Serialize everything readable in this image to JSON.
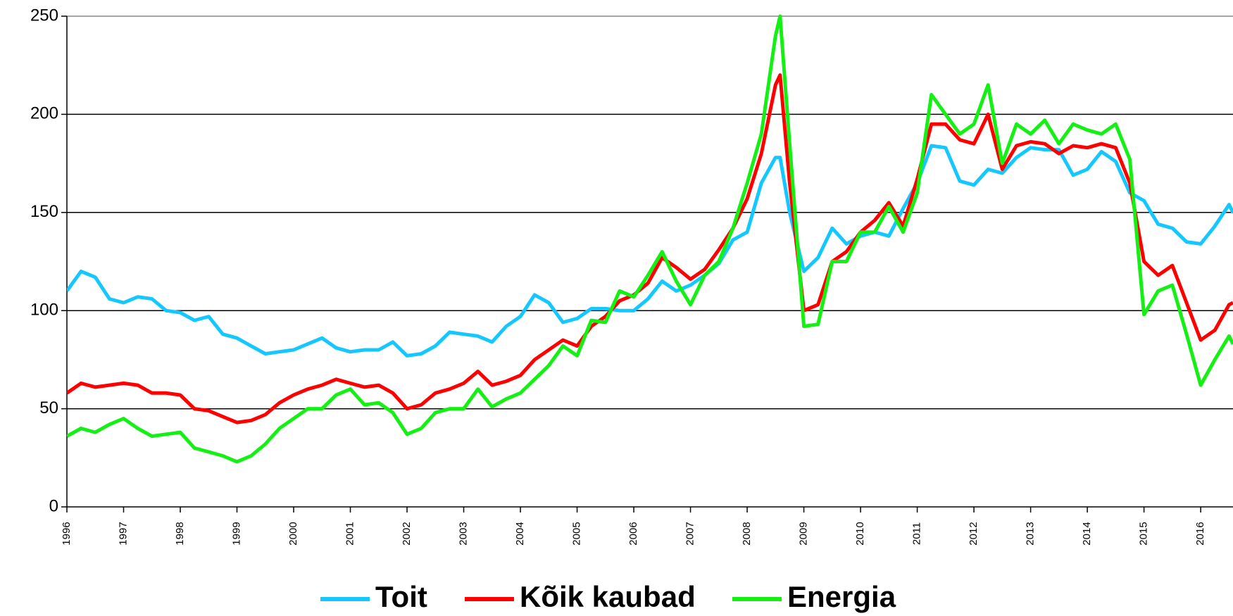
{
  "chart_data": {
    "type": "line",
    "x": [
      1996,
      1996.25,
      1996.5,
      1996.75,
      1997,
      1997.25,
      1997.5,
      1997.75,
      1998,
      1998.25,
      1998.5,
      1998.75,
      1999,
      1999.25,
      1999.5,
      1999.75,
      2000,
      2000.25,
      2000.5,
      2000.75,
      2001,
      2001.25,
      2001.5,
      2001.75,
      2002,
      2002.25,
      2002.5,
      2002.75,
      2003,
      2003.25,
      2003.5,
      2003.75,
      2004,
      2004.25,
      2004.5,
      2004.75,
      2005,
      2005.25,
      2005.5,
      2005.75,
      2006,
      2006.25,
      2006.5,
      2006.75,
      2007,
      2007.25,
      2007.5,
      2007.75,
      2008,
      2008.25,
      2008.5,
      2008.58,
      2008.75,
      2009,
      2009.25,
      2009.5,
      2009.75,
      2010,
      2010.25,
      2010.5,
      2010.75,
      2011,
      2011.25,
      2011.5,
      2011.75,
      2012,
      2012.25,
      2012.5,
      2012.75,
      2013,
      2013.25,
      2013.5,
      2013.75,
      2014,
      2014.25,
      2014.5,
      2014.75,
      2015,
      2015.25,
      2015.5,
      2015.75,
      2016,
      2016.25,
      2016.5,
      2016.57
    ],
    "series": [
      {
        "name": "Toit",
        "color": "#14c8ff",
        "values": [
          110,
          120,
          117,
          106,
          104,
          107,
          106,
          100,
          99,
          95,
          97,
          88,
          86,
          82,
          78,
          79,
          80,
          83,
          86,
          81,
          79,
          80,
          80,
          84,
          77,
          78,
          82,
          89,
          88,
          87,
          84,
          92,
          97,
          108,
          104,
          94,
          96,
          101,
          101,
          100,
          100,
          106,
          115,
          110,
          113,
          118,
          124,
          136,
          140,
          165,
          178,
          178,
          150,
          120,
          127,
          142,
          134,
          138,
          140,
          138,
          152,
          165,
          184,
          183,
          166,
          164,
          172,
          170,
          178,
          183,
          182,
          182,
          169,
          172,
          181,
          176,
          160,
          156,
          144,
          142,
          135,
          134,
          143,
          154,
          150
        ]
      },
      {
        "name": "Kõik kaubad",
        "color": "#ff0000",
        "values": [
          58,
          63,
          61,
          62,
          63,
          62,
          58,
          58,
          57,
          50,
          49,
          46,
          43,
          44,
          47,
          53,
          57,
          60,
          62,
          65,
          63,
          61,
          62,
          58,
          50,
          52,
          58,
          60,
          63,
          69,
          62,
          64,
          67,
          75,
          80,
          85,
          82,
          92,
          97,
          105,
          108,
          114,
          127,
          122,
          116,
          121,
          131,
          142,
          157,
          180,
          215,
          220,
          165,
          100,
          103,
          125,
          130,
          140,
          146,
          155,
          143,
          167,
          195,
          195,
          187,
          185,
          200,
          172,
          184,
          186,
          185,
          180,
          184,
          183,
          185,
          183,
          165,
          125,
          118,
          123,
          104,
          85,
          90,
          103,
          104
        ]
      },
      {
        "name": "Energia",
        "color": "#14f014",
        "values": [
          36,
          40,
          38,
          42,
          45,
          40,
          36,
          37,
          38,
          30,
          28,
          26,
          23,
          26,
          32,
          40,
          45,
          50,
          50,
          57,
          60,
          52,
          53,
          48,
          37,
          40,
          48,
          50,
          50,
          60,
          51,
          55,
          58,
          65,
          72,
          82,
          77,
          95,
          94,
          110,
          107,
          118,
          130,
          115,
          103,
          118,
          125,
          142,
          165,
          190,
          240,
          250,
          185,
          92,
          93,
          125,
          125,
          140,
          140,
          153,
          140,
          160,
          210,
          200,
          190,
          195,
          215,
          175,
          195,
          190,
          197,
          185,
          195,
          192,
          190,
          195,
          177,
          98,
          110,
          113,
          88,
          62,
          75,
          87,
          83
        ]
      }
    ],
    "xlim": [
      1996,
      2016.57
    ],
    "xticks": [
      1996,
      1997,
      1998,
      1999,
      2000,
      2001,
      2002,
      2003,
      2004,
      2005,
      2006,
      2007,
      2008,
      2009,
      2010,
      2011,
      2012,
      2013,
      2014,
      2015,
      2016
    ],
    "ylim": [
      0,
      250
    ],
    "yticks": [
      0,
      50,
      100,
      150,
      200,
      250
    ],
    "grid": true,
    "legend": "bottom"
  }
}
